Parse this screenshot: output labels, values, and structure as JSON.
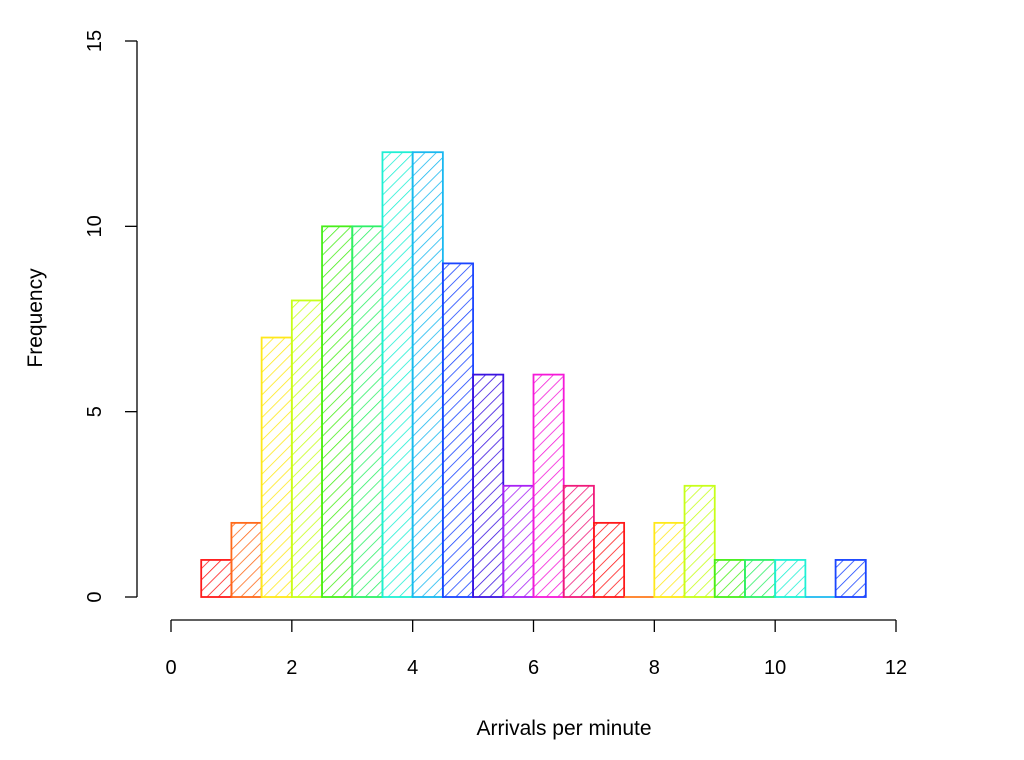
{
  "chart_data": {
    "type": "bar",
    "subtype": "histogram",
    "title": "",
    "xlabel": "Arrivals per minute",
    "ylabel": "Frequency",
    "xlim": [
      0,
      12
    ],
    "ylim": [
      0,
      15
    ],
    "x_ticks": [
      "0",
      "2",
      "4",
      "6",
      "8",
      "10",
      "12"
    ],
    "y_ticks": [
      "0",
      "5",
      "10",
      "15"
    ],
    "grid": false,
    "fill_style": "diagonal hatching",
    "bins": [
      {
        "start": 0.5,
        "end": 1.0,
        "count": 1,
        "color": "#ff1a1a"
      },
      {
        "start": 1.0,
        "end": 1.5,
        "count": 2,
        "color": "#ff6a1a"
      },
      {
        "start": 1.5,
        "end": 2.0,
        "count": 7,
        "color": "#ffe81a"
      },
      {
        "start": 2.0,
        "end": 2.5,
        "count": 8,
        "color": "#c7ff1a"
      },
      {
        "start": 2.5,
        "end": 3.0,
        "count": 10,
        "color": "#48ee1a"
      },
      {
        "start": 3.0,
        "end": 3.5,
        "count": 10,
        "color": "#2ef067"
      },
      {
        "start": 3.5,
        "end": 4.0,
        "count": 12,
        "color": "#1ff0d4"
      },
      {
        "start": 4.0,
        "end": 4.5,
        "count": 12,
        "color": "#1ab8f0"
      },
      {
        "start": 4.5,
        "end": 5.0,
        "count": 9,
        "color": "#1a45ff"
      },
      {
        "start": 5.0,
        "end": 5.5,
        "count": 6,
        "color": "#3a12e0"
      },
      {
        "start": 5.5,
        "end": 6.0,
        "count": 3,
        "color": "#a821f5"
      },
      {
        "start": 6.0,
        "end": 6.5,
        "count": 6,
        "color": "#f51ad8"
      },
      {
        "start": 6.5,
        "end": 7.0,
        "count": 3,
        "color": "#f01a7a"
      },
      {
        "start": 7.0,
        "end": 7.5,
        "count": 2,
        "color": "#ff1a1a"
      },
      {
        "start": 7.5,
        "end": 8.0,
        "count": 0,
        "color": "#ff7a1a"
      },
      {
        "start": 8.0,
        "end": 8.5,
        "count": 2,
        "color": "#ffe81a"
      },
      {
        "start": 8.5,
        "end": 9.0,
        "count": 3,
        "color": "#c7ff1a"
      },
      {
        "start": 9.0,
        "end": 9.5,
        "count": 1,
        "color": "#48ee1a"
      },
      {
        "start": 9.5,
        "end": 10.0,
        "count": 1,
        "color": "#2ef067"
      },
      {
        "start": 10.0,
        "end": 10.5,
        "count": 1,
        "color": "#1ff0d4"
      },
      {
        "start": 10.5,
        "end": 11.0,
        "count": 0,
        "color": "#1ab8f0"
      },
      {
        "start": 11.0,
        "end": 11.5,
        "count": 1,
        "color": "#1a45ff"
      }
    ]
  }
}
